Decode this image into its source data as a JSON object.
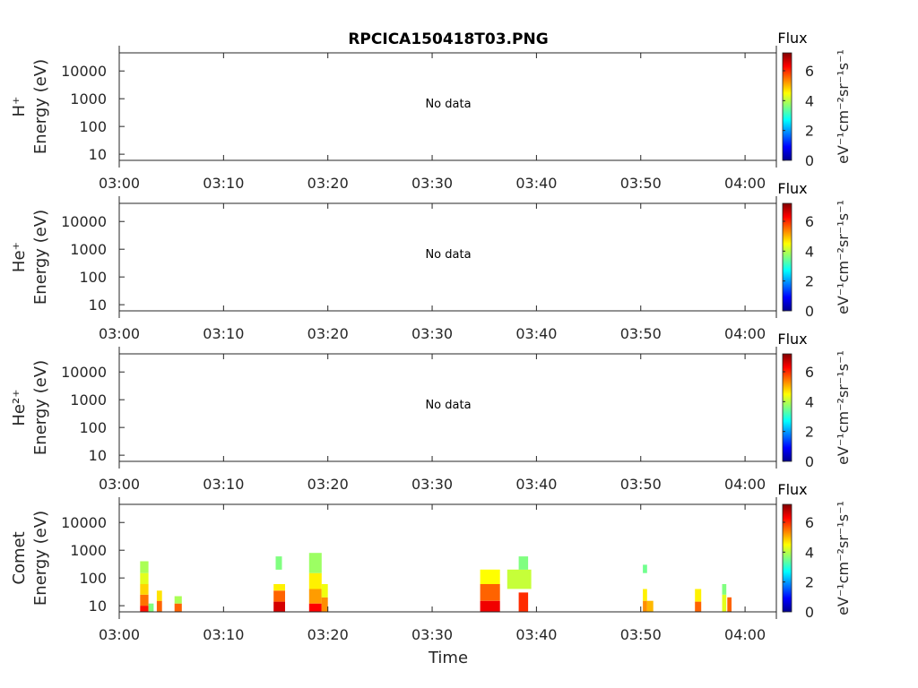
{
  "chart_data": {
    "type": "heatmap",
    "title": "RPCICA150418T03.PNG",
    "xlabel": "Time",
    "x_ticks": [
      "03:00",
      "03:10",
      "03:20",
      "03:30",
      "03:40",
      "03:50",
      "04:00"
    ],
    "x_range_minutes": [
      0,
      63
    ],
    "y_scale": "log",
    "y_ticks": [
      "10",
      "100",
      "1000",
      "10000"
    ],
    "y_range_eV": [
      6,
      45000
    ],
    "colorbar": {
      "label": "Flux",
      "units": "eV⁻¹cm⁻²sr⁻¹s⁻¹",
      "ticks": [
        "0",
        "2",
        "4",
        "6"
      ],
      "range": [
        0,
        7.2
      ]
    },
    "panels": [
      {
        "species": "H⁺",
        "ylabel": "Energy (eV)",
        "message": "No data",
        "cells": []
      },
      {
        "species": "He⁺",
        "ylabel": "Energy (eV)",
        "message": "No data",
        "cells": []
      },
      {
        "species": "He²⁺",
        "ylabel": "Energy (eV)",
        "message": "No data",
        "cells": []
      },
      {
        "species": "Comet",
        "ylabel": "Energy (eV)",
        "message": "",
        "cells": [
          {
            "t0": 2.0,
            "t1": 2.8,
            "e0": 6,
            "e1": 10,
            "v": 6.2
          },
          {
            "t0": 2.0,
            "t1": 2.8,
            "e0": 10,
            "e1": 25,
            "v": 5.5
          },
          {
            "t0": 2.0,
            "t1": 2.8,
            "e0": 25,
            "e1": 60,
            "v": 4.8
          },
          {
            "t0": 2.0,
            "t1": 2.8,
            "e0": 60,
            "e1": 150,
            "v": 4.3
          },
          {
            "t0": 2.0,
            "t1": 2.8,
            "e0": 150,
            "e1": 400,
            "v": 3.9
          },
          {
            "t0": 2.8,
            "t1": 3.3,
            "e0": 6,
            "e1": 12,
            "v": 3.6
          },
          {
            "t0": 3.6,
            "t1": 4.1,
            "e0": 6,
            "e1": 15,
            "v": 5.6
          },
          {
            "t0": 3.6,
            "t1": 4.1,
            "e0": 15,
            "e1": 35,
            "v": 4.7
          },
          {
            "t0": 5.3,
            "t1": 6.0,
            "e0": 6,
            "e1": 12,
            "v": 5.6
          },
          {
            "t0": 5.3,
            "t1": 6.0,
            "e0": 12,
            "e1": 22,
            "v": 3.9
          },
          {
            "t0": 14.8,
            "t1": 15.9,
            "e0": 6,
            "e1": 14,
            "v": 6.6
          },
          {
            "t0": 14.8,
            "t1": 15.9,
            "e0": 14,
            "e1": 35,
            "v": 5.6
          },
          {
            "t0": 14.8,
            "t1": 15.9,
            "e0": 35,
            "e1": 60,
            "v": 4.6
          },
          {
            "t0": 15.0,
            "t1": 15.6,
            "e0": 200,
            "e1": 600,
            "v": 3.6
          },
          {
            "t0": 18.2,
            "t1": 19.4,
            "e0": 6,
            "e1": 12,
            "v": 6.3
          },
          {
            "t0": 18.2,
            "t1": 19.4,
            "e0": 12,
            "e1": 40,
            "v": 5.2
          },
          {
            "t0": 18.2,
            "t1": 19.4,
            "e0": 40,
            "e1": 150,
            "v": 4.6
          },
          {
            "t0": 18.2,
            "t1": 19.4,
            "e0": 150,
            "e1": 800,
            "v": 3.8
          },
          {
            "t0": 19.4,
            "t1": 20.0,
            "e0": 6,
            "e1": 20,
            "v": 5.3
          },
          {
            "t0": 19.4,
            "t1": 20.0,
            "e0": 20,
            "e1": 60,
            "v": 4.4
          },
          {
            "t0": 34.6,
            "t1": 36.5,
            "e0": 6,
            "e1": 15,
            "v": 6.4
          },
          {
            "t0": 34.6,
            "t1": 36.5,
            "e0": 15,
            "e1": 60,
            "v": 5.6
          },
          {
            "t0": 34.6,
            "t1": 36.5,
            "e0": 60,
            "e1": 200,
            "v": 4.5
          },
          {
            "t0": 37.2,
            "t1": 39.5,
            "e0": 40,
            "e1": 200,
            "v": 4.1
          },
          {
            "t0": 38.3,
            "t1": 39.2,
            "e0": 6,
            "e1": 30,
            "v": 6.0
          },
          {
            "t0": 38.3,
            "t1": 39.2,
            "e0": 200,
            "e1": 600,
            "v": 3.6
          },
          {
            "t0": 50.2,
            "t1": 50.6,
            "e0": 6,
            "e1": 15,
            "v": 5.3
          },
          {
            "t0": 50.2,
            "t1": 50.6,
            "e0": 15,
            "e1": 40,
            "v": 4.6
          },
          {
            "t0": 50.2,
            "t1": 50.6,
            "e0": 150,
            "e1": 300,
            "v": 3.5
          },
          {
            "t0": 50.6,
            "t1": 51.2,
            "e0": 6,
            "e1": 15,
            "v": 5.0
          },
          {
            "t0": 55.2,
            "t1": 55.8,
            "e0": 6,
            "e1": 14,
            "v": 5.6
          },
          {
            "t0": 55.2,
            "t1": 55.8,
            "e0": 14,
            "e1": 40,
            "v": 4.6
          },
          {
            "t0": 57.8,
            "t1": 58.2,
            "e0": 6,
            "e1": 25,
            "v": 4.3
          },
          {
            "t0": 57.8,
            "t1": 58.2,
            "e0": 25,
            "e1": 60,
            "v": 3.6
          },
          {
            "t0": 58.3,
            "t1": 58.7,
            "e0": 6,
            "e1": 20,
            "v": 5.6
          }
        ]
      }
    ]
  }
}
